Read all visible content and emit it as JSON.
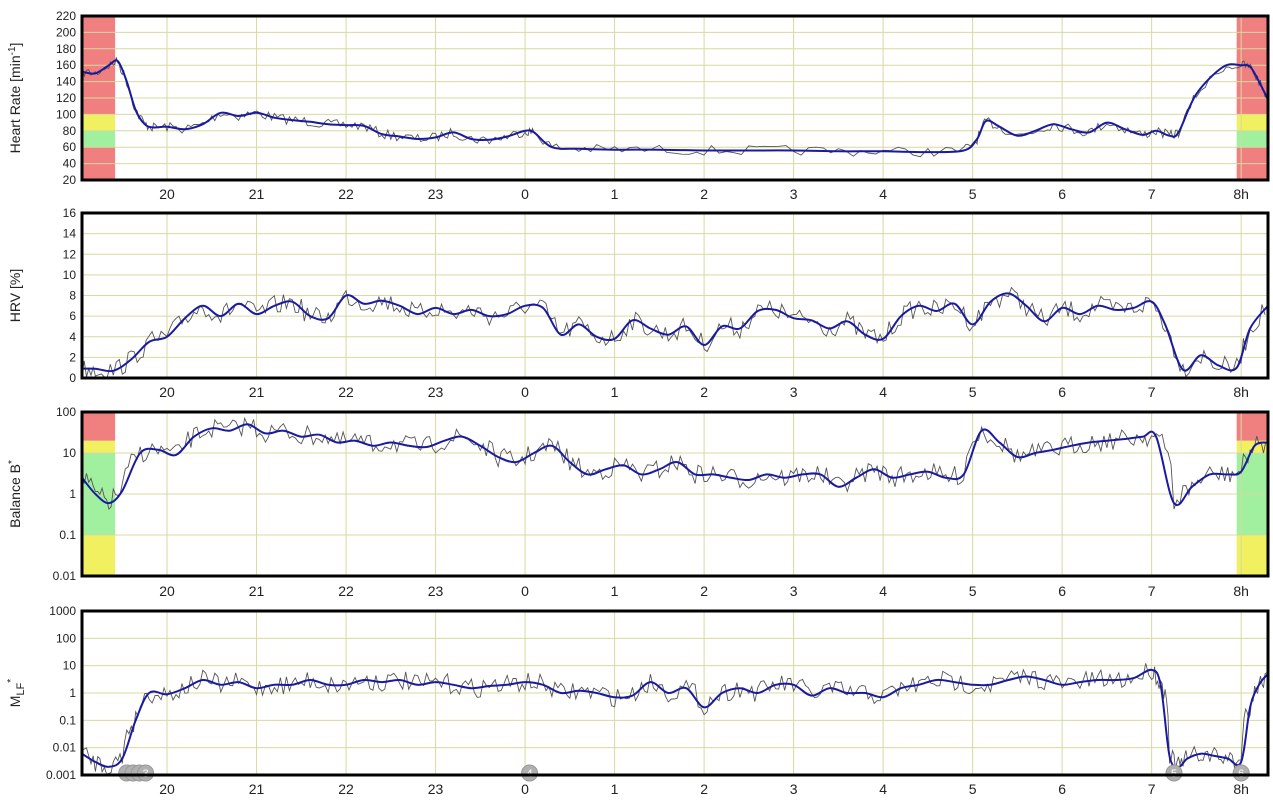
{
  "colors": {
    "frame": "#000000",
    "grid": "#d9d9a0",
    "raw": "#555555",
    "smooth": "#1a1aa0",
    "zone_red": "#f08080",
    "zone_yellow": "#f0f060",
    "zone_green": "#a0f0a0",
    "marker": "#b0b0b0"
  },
  "x_axis": {
    "ticks": [
      "20",
      "21",
      "22",
      "23",
      "0",
      "1",
      "2",
      "3",
      "4",
      "5",
      "6",
      "7",
      "8h"
    ],
    "tick_positions_h": [
      20,
      21,
      22,
      23,
      24,
      25,
      26,
      27,
      28,
      29,
      30,
      31,
      32
    ],
    "range_h": [
      19.05,
      32.3
    ]
  },
  "chart_data": [
    {
      "type": "line",
      "ylabel": "Heart Rate [min⁻¹]",
      "ylabel_main": "Heart Rate [min",
      "ylabel_sup": "-1",
      "ylabel_end": "]",
      "ylim": [
        20,
        220
      ],
      "yticks": [
        "20",
        "40",
        "60",
        "80",
        "100",
        "120",
        "140",
        "160",
        "180",
        "200",
        "220"
      ],
      "ytick_values": [
        20,
        40,
        60,
        80,
        100,
        120,
        140,
        160,
        180,
        200,
        220
      ],
      "log": false,
      "grid": true,
      "zones": [
        {
          "x": [
            19.05,
            19.42
          ],
          "bands": [
            [
              20,
              60,
              "red"
            ],
            [
              60,
              80,
              "green"
            ],
            [
              80,
              100,
              "yellow"
            ],
            [
              100,
              220,
              "red"
            ]
          ]
        },
        {
          "x": [
            31.95,
            32.3
          ],
          "bands": [
            [
              20,
              60,
              "red"
            ],
            [
              60,
              80,
              "green"
            ],
            [
              80,
              100,
              "yellow"
            ],
            [
              100,
              220,
              "red"
            ]
          ]
        }
      ],
      "series": [
        {
          "x": [
            19.05,
            19.2,
            19.35,
            19.45,
            19.55,
            19.65,
            19.75,
            19.85,
            20,
            20.2,
            20.4,
            20.6,
            20.8,
            21,
            21.2,
            21.4,
            21.6,
            21.8,
            22,
            22.2,
            22.4,
            22.6,
            22.8,
            23,
            23.2,
            23.4,
            23.6,
            23.8,
            24,
            24.1,
            24.3,
            24.6,
            25,
            25.5,
            26,
            26.5,
            27,
            27.5,
            28,
            28.5,
            28.9,
            29.05,
            29.15,
            29.3,
            29.5,
            29.7,
            29.9,
            30.1,
            30.3,
            30.5,
            30.7,
            30.9,
            31.05,
            31.2,
            31.3,
            31.5,
            31.8,
            32,
            32.1,
            32.2,
            32.3
          ],
          "y": [
            152,
            150,
            160,
            165,
            140,
            105,
            88,
            84,
            85,
            82,
            88,
            102,
            98,
            102,
            96,
            93,
            91,
            88,
            87,
            86,
            76,
            73,
            70,
            72,
            78,
            70,
            69,
            73,
            80,
            78,
            60,
            58,
            57,
            57,
            56,
            56,
            56,
            55,
            55,
            54,
            56,
            70,
            92,
            85,
            74,
            80,
            88,
            82,
            78,
            90,
            82,
            75,
            80,
            74,
            78,
            125,
            158,
            160,
            158,
            140,
            118
          ]
        }
      ]
    },
    {
      "type": "line",
      "ylabel": "HRV [%]",
      "ylim": [
        0,
        16
      ],
      "yticks": [
        "0",
        "2",
        "4",
        "6",
        "8",
        "10",
        "12",
        "14",
        "16"
      ],
      "ytick_values": [
        0,
        2,
        4,
        6,
        8,
        10,
        12,
        14,
        16
      ],
      "log": false,
      "grid": true,
      "series": [
        {
          "x": [
            19.05,
            19.2,
            19.4,
            19.6,
            19.8,
            20,
            20.2,
            20.4,
            20.6,
            20.8,
            21,
            21.2,
            21.4,
            21.6,
            21.8,
            22,
            22.2,
            22.4,
            22.6,
            22.8,
            23,
            23.2,
            23.4,
            23.6,
            23.8,
            24,
            24.2,
            24.4,
            24.6,
            24.8,
            25,
            25.2,
            25.4,
            25.6,
            25.8,
            26,
            26.2,
            26.4,
            26.6,
            26.8,
            27,
            27.2,
            27.4,
            27.6,
            27.8,
            28,
            28.2,
            28.4,
            28.6,
            28.8,
            29,
            29.2,
            29.4,
            29.6,
            29.8,
            30,
            30.2,
            30.4,
            30.6,
            30.8,
            31,
            31.15,
            31.35,
            31.55,
            31.75,
            31.95,
            32.1,
            32.3
          ],
          "y": [
            0.9,
            0.9,
            0.7,
            1.8,
            3.5,
            4.0,
            5.8,
            7.0,
            6.0,
            7.2,
            6.2,
            7.0,
            7.4,
            6.0,
            5.8,
            8.0,
            7.2,
            7.5,
            7.0,
            6.2,
            6.8,
            6.2,
            6.6,
            6.0,
            6.2,
            7.0,
            6.8,
            4.2,
            5.2,
            4.0,
            3.8,
            5.6,
            4.8,
            4.2,
            5.0,
            3.2,
            5.0,
            4.8,
            6.5,
            6.6,
            5.8,
            5.6,
            4.8,
            5.5,
            4.2,
            3.8,
            6.0,
            7.0,
            6.5,
            7.2,
            5.2,
            7.4,
            8.2,
            7.0,
            5.5,
            6.8,
            6.2,
            7.0,
            6.6,
            6.8,
            7.4,
            5.2,
            0.8,
            2.2,
            1.2,
            1.0,
            4.8,
            7.0
          ]
        }
      ]
    },
    {
      "type": "line",
      "ylabel": "Balance B*",
      "ylabel_main": "Balance B",
      "ylabel_sup": "*",
      "ylim": [
        0.01,
        100
      ],
      "yticks": [
        "0.01",
        "0.1",
        "1",
        "10",
        "100"
      ],
      "ytick_values": [
        0.01,
        0.1,
        1,
        10,
        100
      ],
      "log": true,
      "grid": true,
      "zones": [
        {
          "x": [
            19.05,
            19.42
          ],
          "bands": [
            [
              0.01,
              0.1,
              "yellow"
            ],
            [
              0.1,
              10,
              "green"
            ],
            [
              10,
              20,
              "yellow"
            ],
            [
              20,
              100,
              "red"
            ]
          ]
        },
        {
          "x": [
            31.95,
            32.3
          ],
          "bands": [
            [
              0.01,
              0.1,
              "yellow"
            ],
            [
              0.1,
              10,
              "green"
            ],
            [
              10,
              20,
              "yellow"
            ],
            [
              20,
              100,
              "red"
            ]
          ]
        }
      ],
      "series": [
        {
          "x": [
            19.05,
            19.2,
            19.35,
            19.5,
            19.7,
            19.9,
            20.1,
            20.3,
            20.5,
            20.7,
            20.9,
            21.1,
            21.3,
            21.5,
            21.7,
            21.9,
            22.1,
            22.3,
            22.5,
            22.7,
            22.9,
            23.1,
            23.3,
            23.5,
            23.7,
            23.9,
            24.1,
            24.3,
            24.5,
            24.7,
            24.9,
            25.1,
            25.3,
            25.5,
            25.7,
            25.9,
            26.1,
            26.3,
            26.5,
            26.7,
            26.9,
            27.1,
            27.3,
            27.5,
            27.7,
            27.9,
            28.1,
            28.3,
            28.5,
            28.7,
            28.9,
            29.1,
            29.3,
            29.5,
            29.7,
            29.9,
            30.1,
            30.3,
            30.5,
            30.7,
            30.9,
            31.05,
            31.25,
            31.45,
            31.65,
            31.85,
            32.0,
            32.15,
            32.3
          ],
          "y": [
            2.5,
            1.0,
            0.6,
            1.2,
            10,
            12,
            9,
            25,
            40,
            35,
            50,
            30,
            35,
            25,
            28,
            18,
            20,
            15,
            18,
            15,
            14,
            20,
            25,
            15,
            8,
            6,
            10,
            15,
            6,
            3,
            4,
            5,
            3,
            4,
            6,
            3,
            3,
            2.5,
            2.2,
            3,
            2.5,
            3,
            3,
            1.5,
            2.5,
            4,
            2.5,
            3,
            3.5,
            2.5,
            3,
            35,
            18,
            8,
            10,
            12,
            15,
            18,
            20,
            22,
            25,
            25,
            0.6,
            1.5,
            3,
            3,
            3.5,
            15,
            18
          ]
        }
      ]
    },
    {
      "type": "line",
      "ylabel": "MLF*",
      "ylabel_main": "M",
      "ylabel_sub": "LF",
      "ylabel_sup": "*",
      "ylim": [
        0.001,
        1000
      ],
      "yticks": [
        "0.001",
        "0.01",
        "0.1",
        "1",
        "10",
        "100",
        "1000"
      ],
      "ytick_values": [
        0.001,
        0.01,
        0.1,
        1,
        10,
        100,
        1000
      ],
      "log": true,
      "grid": true,
      "markers": [
        {
          "x": 19.55,
          "label": ""
        },
        {
          "x": 19.62,
          "label": ""
        },
        {
          "x": 19.69,
          "label": ""
        },
        {
          "x": 19.76,
          "label": "3"
        },
        {
          "x": 24.05,
          "label": "4"
        },
        {
          "x": 31.25,
          "label": "5"
        },
        {
          "x": 32.0,
          "label": "6"
        }
      ],
      "series": [
        {
          "x": [
            19.05,
            19.2,
            19.35,
            19.5,
            19.65,
            19.8,
            20.0,
            20.2,
            20.4,
            20.6,
            20.8,
            21.0,
            21.2,
            21.4,
            21.6,
            21.8,
            22.0,
            22.2,
            22.4,
            22.6,
            22.8,
            23.0,
            23.2,
            23.4,
            23.6,
            23.8,
            24.0,
            24.2,
            24.4,
            24.6,
            24.8,
            25.0,
            25.2,
            25.4,
            25.6,
            25.8,
            26.0,
            26.2,
            26.4,
            26.6,
            26.8,
            27.0,
            27.2,
            27.4,
            27.6,
            27.8,
            28.0,
            28.2,
            28.4,
            28.6,
            28.8,
            29.0,
            29.2,
            29.4,
            29.6,
            29.8,
            30.0,
            30.2,
            30.4,
            30.6,
            30.8,
            31.0,
            31.1,
            31.2,
            31.3,
            31.4,
            31.55,
            31.7,
            31.85,
            32.0,
            32.1,
            32.2,
            32.3
          ],
          "y": [
            0.006,
            0.003,
            0.002,
            0.004,
            0.1,
            1.0,
            0.9,
            1.5,
            3.0,
            2.0,
            2.5,
            1.5,
            2.0,
            2.0,
            3.0,
            2.0,
            2.0,
            3.0,
            2.5,
            3.0,
            2.0,
            2.5,
            2.0,
            1.5,
            1.8,
            2.0,
            2.5,
            2.0,
            1.0,
            1.2,
            1.0,
            0.7,
            0.8,
            2.5,
            1.0,
            1.5,
            0.3,
            1.0,
            1.5,
            1.0,
            2.0,
            2.0,
            0.8,
            1.5,
            1.0,
            1.0,
            0.7,
            1.5,
            2.0,
            3.0,
            2.5,
            2.0,
            2.0,
            3.0,
            4.0,
            3.0,
            2.0,
            2.5,
            3.0,
            3.0,
            3.5,
            7.0,
            2.0,
            0.005,
            0.002,
            0.004,
            0.006,
            0.005,
            0.004,
            0.003,
            0.3,
            2.0,
            5.0
          ]
        }
      ]
    }
  ]
}
